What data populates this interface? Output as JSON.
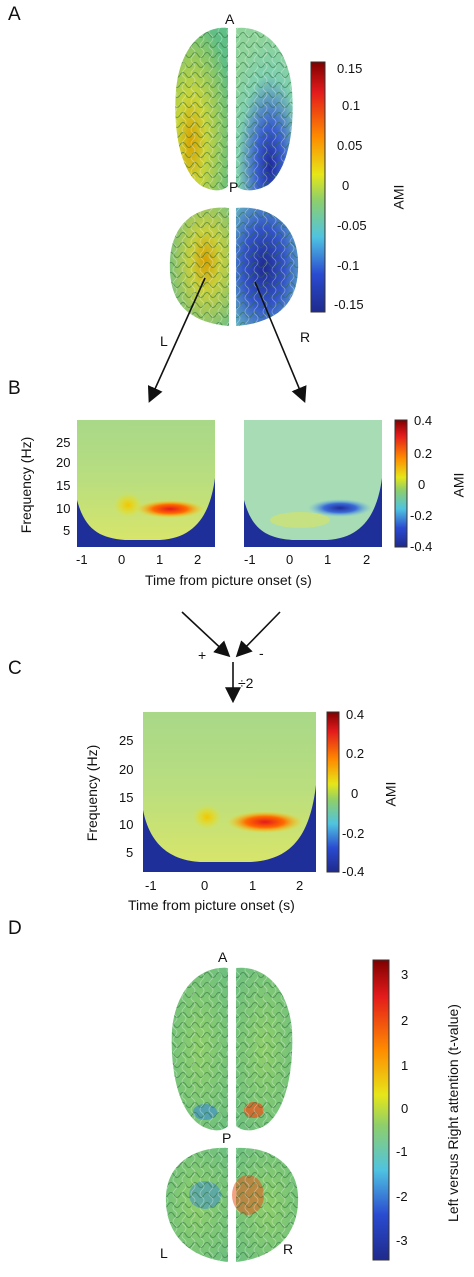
{
  "panels": {
    "a": {
      "letter": "A",
      "top_label": "A",
      "mid_label": "P",
      "left_label": "L",
      "right_label": "R"
    },
    "b": {
      "letter": "B"
    },
    "c": {
      "letter": "C"
    },
    "d": {
      "letter": "D",
      "top_label": "A",
      "mid_label": "P",
      "left_label": "L",
      "right_label": "R"
    }
  },
  "colorbar_a": {
    "label": "AMI",
    "ticks": [
      "0.15",
      "0.1",
      "0.05",
      "0",
      "-0.05",
      "-0.1",
      "-0.15"
    ]
  },
  "colorbar_tf": {
    "label": "AMI",
    "ticks": [
      "0.4",
      "0.2",
      "0",
      "-0.2",
      "-0.4"
    ]
  },
  "colorbar_d": {
    "label": "Left versus Right attention (t-value)",
    "ticks": [
      "3",
      "2",
      "1",
      "0",
      "-1",
      "-2",
      "-3"
    ]
  },
  "tf_axes": {
    "ylabel": "Frequency (Hz)",
    "xlabel": "Time from picture onset (s)",
    "yticks": [
      "25",
      "20",
      "15",
      "10",
      "5"
    ],
    "xticks": [
      "-1",
      "0",
      "1",
      "2"
    ]
  },
  "combine": {
    "plus": "+",
    "minus": "-",
    "divide": "÷2"
  },
  "colors": {
    "dark_red": "#7f0000",
    "red": "#e31a1c",
    "orange": "#ff8c00",
    "yellow": "#e6e619",
    "green": "#8fcf6a",
    "cyan": "#4fc3e0",
    "blue": "#2a4bd0",
    "dark_blue": "#1f2a8c"
  }
}
